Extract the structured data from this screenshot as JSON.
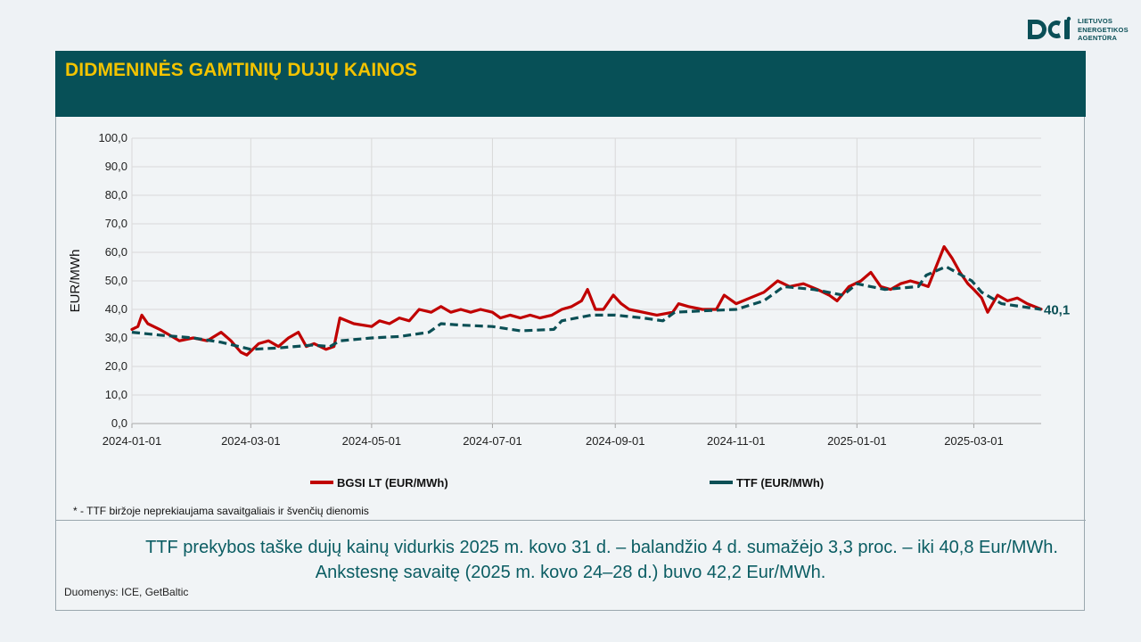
{
  "brand": {
    "logo_lines": [
      "LIETUVOS",
      "ENERGETIKOS",
      "AGENTŪRA"
    ],
    "primary_color": "#075057",
    "accent_color": "#f3c300"
  },
  "header": {
    "title": "DIDMENINĖS GAMTINIŲ DUJŲ KAINOS"
  },
  "chart_data": {
    "type": "line",
    "ylabel": "EUR/MWh",
    "ylim": [
      0,
      100
    ],
    "y_ticks": [
      "0,0",
      "10,0",
      "20,0",
      "30,0",
      "40,0",
      "50,0",
      "60,0",
      "70,0",
      "80,0",
      "90,0",
      "100,0"
    ],
    "x_ticks": [
      "2024-01-01",
      "2024-03-01",
      "2024-05-01",
      "2024-07-01",
      "2024-09-01",
      "2024-11-01",
      "2025-01-01",
      "2025-03-01"
    ],
    "xlim": [
      "2024-01-01",
      "2025-04-04"
    ],
    "grid": true,
    "legend_position": "bottom",
    "end_label": "40,1",
    "series": [
      {
        "name": "BGSI LT (EUR/MWh)",
        "color": "#c00000",
        "style": "solid",
        "points": [
          [
            "2024-01-01",
            33
          ],
          [
            "2024-01-04",
            34
          ],
          [
            "2024-01-06",
            38
          ],
          [
            "2024-01-09",
            35
          ],
          [
            "2024-01-15",
            33
          ],
          [
            "2024-01-20",
            31
          ],
          [
            "2024-01-25",
            29
          ],
          [
            "2024-02-01",
            30
          ],
          [
            "2024-02-08",
            29
          ],
          [
            "2024-02-15",
            32
          ],
          [
            "2024-02-20",
            29
          ],
          [
            "2024-02-25",
            25
          ],
          [
            "2024-02-28",
            24
          ],
          [
            "2024-03-05",
            28
          ],
          [
            "2024-03-10",
            29
          ],
          [
            "2024-03-15",
            27
          ],
          [
            "2024-03-20",
            30
          ],
          [
            "2024-03-25",
            32
          ],
          [
            "2024-03-29",
            27
          ],
          [
            "2024-04-02",
            28
          ],
          [
            "2024-04-08",
            26
          ],
          [
            "2024-04-12",
            27
          ],
          [
            "2024-04-15",
            37
          ],
          [
            "2024-04-22",
            35
          ],
          [
            "2024-05-01",
            34
          ],
          [
            "2024-05-05",
            36
          ],
          [
            "2024-05-10",
            35
          ],
          [
            "2024-05-15",
            37
          ],
          [
            "2024-05-20",
            36
          ],
          [
            "2024-05-25",
            40
          ],
          [
            "2024-05-31",
            39
          ],
          [
            "2024-06-05",
            41
          ],
          [
            "2024-06-10",
            39
          ],
          [
            "2024-06-15",
            40
          ],
          [
            "2024-06-20",
            39
          ],
          [
            "2024-06-25",
            40
          ],
          [
            "2024-07-01",
            39
          ],
          [
            "2024-07-05",
            37
          ],
          [
            "2024-07-10",
            38
          ],
          [
            "2024-07-15",
            37
          ],
          [
            "2024-07-20",
            38
          ],
          [
            "2024-07-25",
            37
          ],
          [
            "2024-07-31",
            38
          ],
          [
            "2024-08-05",
            40
          ],
          [
            "2024-08-10",
            41
          ],
          [
            "2024-08-15",
            43
          ],
          [
            "2024-08-18",
            47
          ],
          [
            "2024-08-22",
            40
          ],
          [
            "2024-08-26",
            40
          ],
          [
            "2024-08-31",
            45
          ],
          [
            "2024-09-04",
            42
          ],
          [
            "2024-09-08",
            40
          ],
          [
            "2024-09-15",
            39
          ],
          [
            "2024-09-22",
            38
          ],
          [
            "2024-09-30",
            39
          ],
          [
            "2024-10-03",
            42
          ],
          [
            "2024-10-08",
            41
          ],
          [
            "2024-10-15",
            40
          ],
          [
            "2024-10-22",
            40
          ],
          [
            "2024-10-26",
            45
          ],
          [
            "2024-11-01",
            42
          ],
          [
            "2024-11-08",
            44
          ],
          [
            "2024-11-15",
            46
          ],
          [
            "2024-11-22",
            50
          ],
          [
            "2024-11-28",
            48
          ],
          [
            "2024-12-05",
            49
          ],
          [
            "2024-12-12",
            47
          ],
          [
            "2024-12-18",
            45
          ],
          [
            "2024-12-22",
            43
          ],
          [
            "2024-12-28",
            48
          ],
          [
            "2025-01-03",
            50
          ],
          [
            "2025-01-08",
            53
          ],
          [
            "2025-01-13",
            48
          ],
          [
            "2025-01-18",
            47
          ],
          [
            "2025-01-23",
            49
          ],
          [
            "2025-01-28",
            50
          ],
          [
            "2025-02-02",
            49
          ],
          [
            "2025-02-06",
            48
          ],
          [
            "2025-02-10",
            55
          ],
          [
            "2025-02-14",
            62
          ],
          [
            "2025-02-18",
            58
          ],
          [
            "2025-02-22",
            53
          ],
          [
            "2025-02-26",
            49
          ],
          [
            "2025-03-01",
            47
          ],
          [
            "2025-03-05",
            44
          ],
          [
            "2025-03-08",
            39
          ],
          [
            "2025-03-13",
            45
          ],
          [
            "2025-03-18",
            43
          ],
          [
            "2025-03-23",
            44
          ],
          [
            "2025-03-28",
            42
          ],
          [
            "2025-04-04",
            40.1
          ]
        ]
      },
      {
        "name": "TTF (EUR/MWh)",
        "color": "#0b4f55",
        "style": "dashed",
        "points": [
          [
            "2024-01-01",
            32
          ],
          [
            "2024-01-15",
            31
          ],
          [
            "2024-02-01",
            30
          ],
          [
            "2024-02-15",
            28.5
          ],
          [
            "2024-03-01",
            26
          ],
          [
            "2024-03-15",
            26.5
          ],
          [
            "2024-04-01",
            27.5
          ],
          [
            "2024-04-10",
            27
          ],
          [
            "2024-04-15",
            29
          ],
          [
            "2024-05-01",
            30
          ],
          [
            "2024-05-15",
            30.5
          ],
          [
            "2024-05-30",
            32
          ],
          [
            "2024-06-05",
            35
          ],
          [
            "2024-06-15",
            34.5
          ],
          [
            "2024-07-01",
            34
          ],
          [
            "2024-07-15",
            32.5
          ],
          [
            "2024-08-01",
            33
          ],
          [
            "2024-08-05",
            36
          ],
          [
            "2024-08-20",
            38
          ],
          [
            "2024-09-01",
            38
          ],
          [
            "2024-09-15",
            37
          ],
          [
            "2024-09-25",
            36
          ],
          [
            "2024-10-01",
            39
          ],
          [
            "2024-10-15",
            39.5
          ],
          [
            "2024-11-01",
            40
          ],
          [
            "2024-11-15",
            43
          ],
          [
            "2024-11-25",
            48
          ],
          [
            "2024-12-10",
            47
          ],
          [
            "2024-12-25",
            45
          ],
          [
            "2025-01-01",
            49
          ],
          [
            "2025-01-15",
            47
          ],
          [
            "2025-02-01",
            48
          ],
          [
            "2025-02-05",
            52
          ],
          [
            "2025-02-15",
            55
          ],
          [
            "2025-02-28",
            50
          ],
          [
            "2025-03-05",
            46
          ],
          [
            "2025-03-15",
            42
          ],
          [
            "2025-03-25",
            41
          ],
          [
            "2025-04-04",
            40
          ]
        ]
      }
    ]
  },
  "footnote": "* - TTF biržoje neprekiaujama savaitgaliais ir švenčių dienomis",
  "summary": {
    "line1": "TTF prekybos taške dujų kainų vidurkis 2025 m. kovo 31 d. – balandžio 4 d. sumažėjo 3,3 proc. – iki 40,8 Eur/MWh.",
    "line2": "Ankstesnę savaitę (2025 m. kovo 24–28 d.) buvo 42,2 Eur/MWh."
  },
  "source": "Duomenys: ICE, GetBaltic"
}
